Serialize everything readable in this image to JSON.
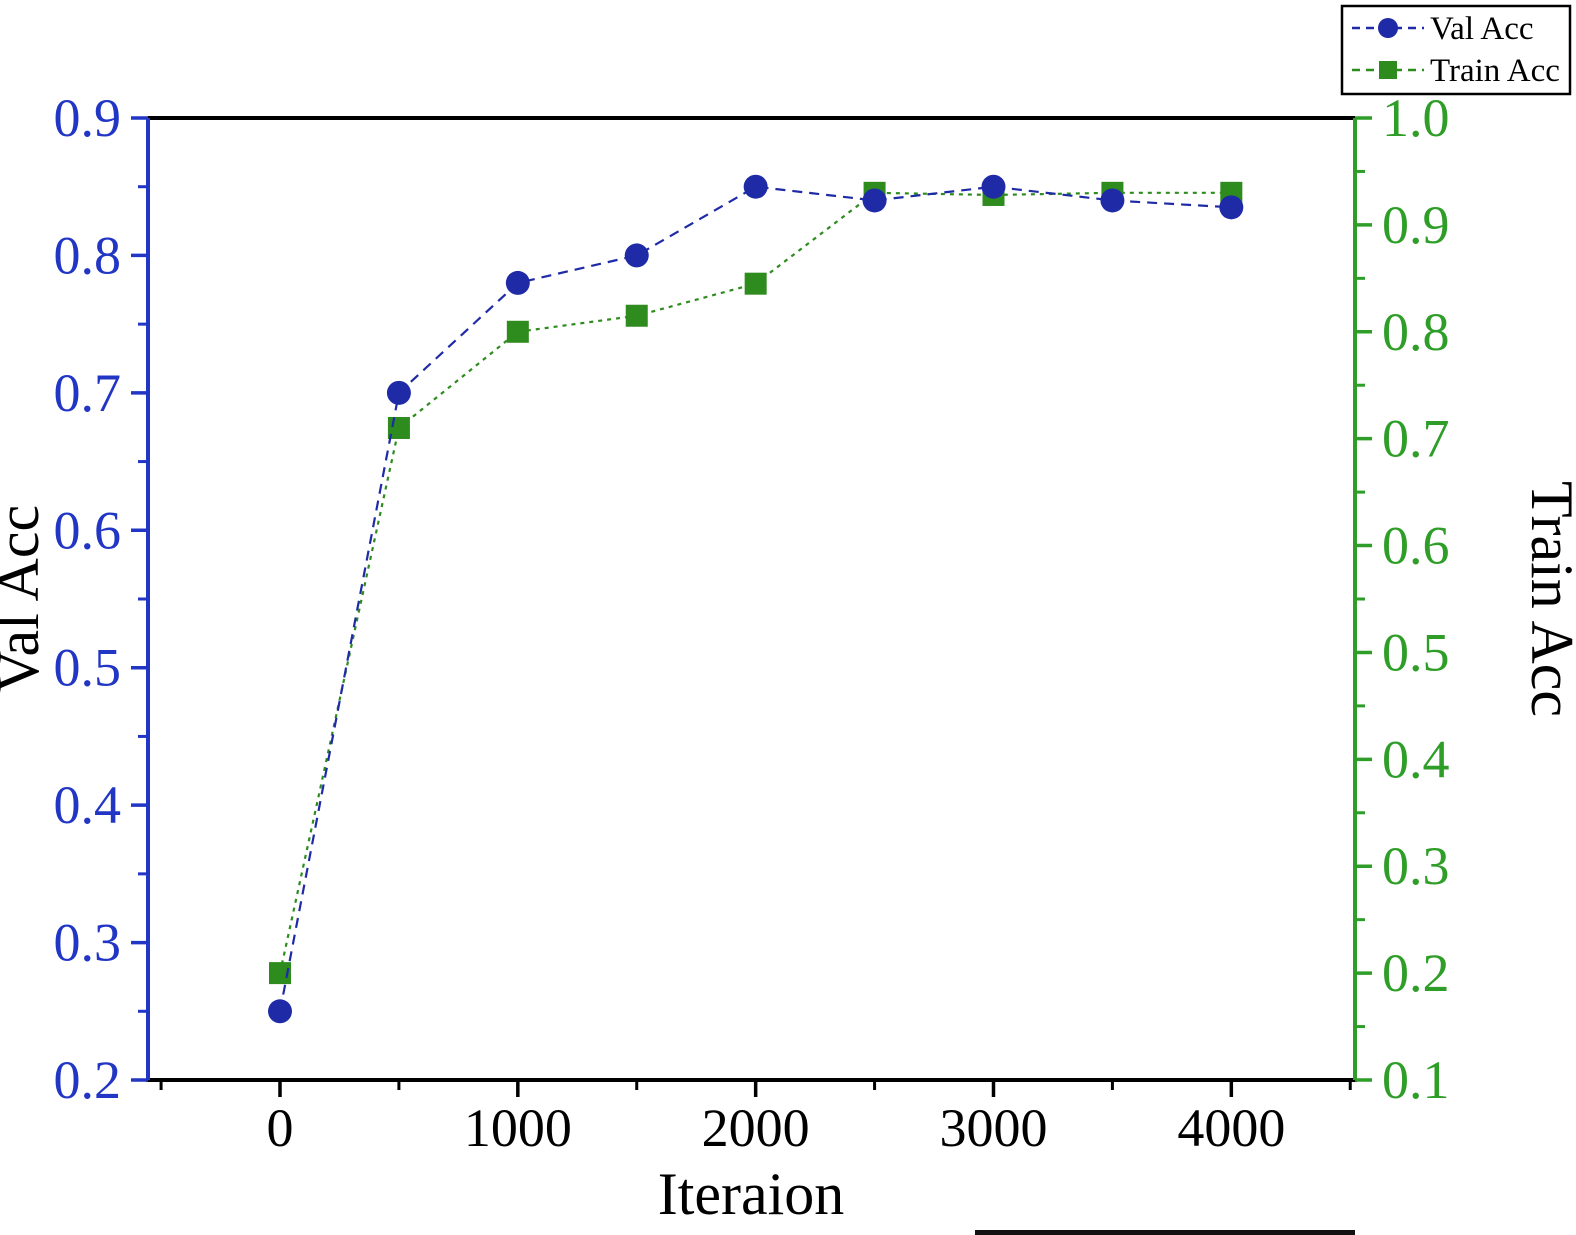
{
  "chart_data": {
    "type": "line",
    "title": "",
    "xlabel": "Iteraion",
    "x": [
      0,
      500,
      1000,
      1500,
      2000,
      2500,
      3000,
      3500,
      4000
    ],
    "series": [
      {
        "name": "Val Acc",
        "axis": "left",
        "marker": "circle",
        "color": "#1f2aa6",
        "dash": "10 7",
        "values": [
          0.25,
          0.7,
          0.78,
          0.8,
          0.85,
          0.84,
          0.85,
          0.84,
          0.835
        ]
      },
      {
        "name": "Train Acc",
        "axis": "right",
        "marker": "square",
        "color": "#2e8b1e",
        "dash": "4 5",
        "values": [
          0.2,
          0.71,
          0.8,
          0.815,
          0.845,
          0.93,
          0.928,
          0.93,
          0.93
        ]
      }
    ],
    "left_axis": {
      "label": "Val Acc",
      "min": 0.2,
      "max": 0.9,
      "tick_step": 0.1,
      "color": "#2136c4"
    },
    "right_axis": {
      "label": "Train Acc",
      "min": 0.1,
      "max": 1.0,
      "tick_step": 0.1,
      "color": "#2f9e28"
    },
    "x_axis": {
      "min": -555,
      "max": 4520,
      "ticks": [
        0,
        1000,
        2000,
        3000,
        4000
      ],
      "minor_ticks": [
        -500,
        500,
        1500,
        2500,
        3500,
        4500
      ],
      "color": "#000000"
    },
    "legend": {
      "position": "top-right",
      "entries": [
        "Val Acc",
        "Train Acc"
      ]
    }
  }
}
